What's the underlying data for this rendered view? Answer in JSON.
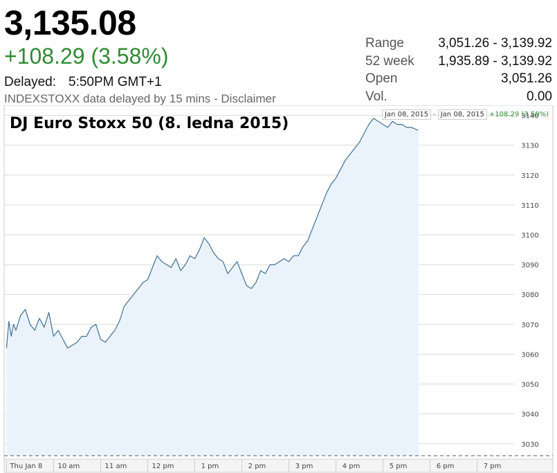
{
  "quote": {
    "price": "3,135.08",
    "change": "+108.29 (3.58%)",
    "delayed_label": "Delayed:",
    "delayed_time": "5:50PM GMT+1",
    "source_note": "INDEXSTOXX data delayed by 15 mins - Disclaimer"
  },
  "stats": [
    {
      "label": "Range",
      "value": "3,051.26 - 3,139.92"
    },
    {
      "label": "52 week",
      "value": "1,935.89 - 3,139.92"
    },
    {
      "label": "Open",
      "value": "3,051.26"
    },
    {
      "label": "Vol.",
      "value": "0.00"
    }
  ],
  "range_selector": {
    "start": "Jan 08, 2015",
    "separator": "-",
    "end": "Jan 08, 2015",
    "change": "+108.29 (3.58%)"
  },
  "colors": {
    "line": "#3f6f96",
    "fill": "#eaf3fc",
    "positive": "#2e8b32",
    "grid": "#d9d9d9"
  },
  "chart_data": {
    "type": "area",
    "title": "DJ Euro Stoxx 50 (8. ledna 2015)",
    "x_ticks": [
      {
        "label": "Thu Jan 8",
        "t": 9.0
      },
      {
        "label": "10 am",
        "t": 10.0
      },
      {
        "label": "11 am",
        "t": 11.0
      },
      {
        "label": "12 pm",
        "t": 12.0
      },
      {
        "label": "1 pm",
        "t": 13.0
      },
      {
        "label": "2 pm",
        "t": 14.0
      },
      {
        "label": "3 pm",
        "t": 15.0
      },
      {
        "label": "4 pm",
        "t": 16.0
      },
      {
        "label": "5 pm",
        "t": 17.0
      },
      {
        "label": "6 pm",
        "t": 18.0
      },
      {
        "label": "7 pm",
        "t": 19.0
      }
    ],
    "x_range": [
      8.95,
      19.8
    ],
    "y_ticks": [
      3030,
      3040,
      3050,
      3060,
      3070,
      3080,
      3090,
      3100,
      3110,
      3120,
      3130,
      3140
    ],
    "ylim": [
      3026,
      3142
    ],
    "grid": true,
    "y_axis_side": "right",
    "series": [
      {
        "x": [
          9.0,
          9.05,
          9.1,
          9.15,
          9.2,
          9.3,
          9.4,
          9.5,
          9.6,
          9.7,
          9.8,
          9.9,
          10.0,
          10.1,
          10.2,
          10.3,
          10.4,
          10.5,
          10.6,
          10.7,
          10.8,
          10.9,
          11.0,
          11.1,
          11.2,
          11.3,
          11.4,
          11.5,
          11.6,
          11.7,
          11.8,
          11.9,
          12.0,
          12.1,
          12.2,
          12.3,
          12.4,
          12.5,
          12.6,
          12.7,
          12.8,
          12.9,
          13.0,
          13.1,
          13.2,
          13.3,
          13.4,
          13.5,
          13.6,
          13.7,
          13.8,
          13.9,
          14.0,
          14.1,
          14.2,
          14.3,
          14.4,
          14.5,
          14.6,
          14.7,
          14.8,
          14.9,
          15.0,
          15.1,
          15.2,
          15.3,
          15.4,
          15.5,
          15.6,
          15.7,
          15.8,
          15.9,
          16.0,
          16.1,
          16.2,
          16.3,
          16.4,
          16.5,
          16.6,
          16.7,
          16.8,
          16.9,
          17.0,
          17.1,
          17.2,
          17.3,
          17.4,
          17.5,
          17.6,
          17.75
        ],
        "values": [
          3062,
          3071,
          3066,
          3070,
          3068,
          3073,
          3075,
          3070,
          3068,
          3072,
          3069,
          3074,
          3066,
          3068,
          3065,
          3062,
          3063,
          3064,
          3066,
          3066,
          3069,
          3070,
          3065,
          3064,
          3066,
          3068,
          3071,
          3076,
          3078,
          3080,
          3082,
          3084,
          3085,
          3089,
          3093,
          3091,
          3090,
          3089,
          3092,
          3088,
          3090,
          3093,
          3092,
          3095,
          3099,
          3097,
          3094,
          3092,
          3091,
          3087,
          3089,
          3091,
          3087,
          3083,
          3082,
          3084,
          3088,
          3087,
          3090,
          3090,
          3091,
          3092,
          3091,
          3093,
          3093,
          3096,
          3098,
          3102,
          3106,
          3110,
          3114,
          3117,
          3119,
          3122,
          3125,
          3127,
          3129,
          3131,
          3134,
          3137,
          3139,
          3138,
          3137,
          3136,
          3138,
          3137,
          3137,
          3136,
          3136,
          3135
        ]
      }
    ]
  }
}
